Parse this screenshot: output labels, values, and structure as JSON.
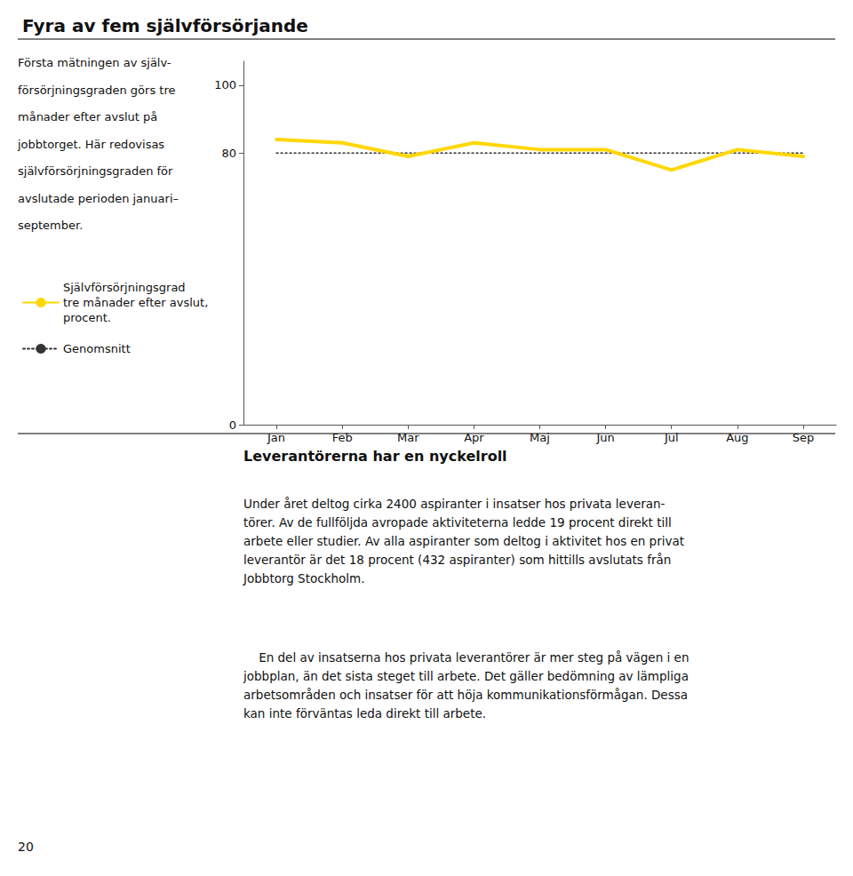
{
  "chart_data": {
    "type": "line",
    "title": "Fyra av fem självförsörjande",
    "categories": [
      "Jan",
      "Feb",
      "Mar",
      "Apr",
      "Maj",
      "Jun",
      "Jul",
      "Aug",
      "Sep"
    ],
    "series": [
      {
        "name": "Självförsörjningsgrad\ntre månader efter avslut,\nprocent.",
        "color": "#FFD700",
        "line_style": "solid",
        "values": [
          84,
          83,
          79,
          83,
          81,
          81,
          75,
          81,
          79
        ]
      },
      {
        "name": "Genomsnitt",
        "color": "#333333",
        "line_style": "dotted",
        "values": [
          80,
          80,
          80,
          80,
          80,
          80,
          80,
          80,
          80
        ]
      }
    ],
    "ylim": [
      0,
      107
    ],
    "yticks": [
      0,
      80,
      100
    ],
    "grid": false,
    "legend": "left",
    "annotations": [
      "Första mätningen av själv-",
      "försörjningsgraden görs tre",
      "månader efter avslut på",
      "jobbtorget. Här redovisas",
      "självförsörjningsgraden för",
      "avslutade perioden januari–",
      "september.",
      "Leverantörerna har en nyckelroll",
      "Under året deltog cirka 2400 aspiranter i insatser hos privata leveran-\ntörer. Av de fullföljda avropade aktiviteterna ledde 19 procent direkt till\narbete eller studier. Av alla aspiranter som deltog i aktivitet hos en privat\nleverantör är det 18 procent (432 aspiranter) som hittills avslutats från\nJobbtorg Stockholm.",
      "    En del av insatserna hos privata leverantörer är mer steg på vägen i en\njobbplan, än det sista steget till arbete. Det gäller bedömning av lämpliga\narbetsområden och insatser för att höja kommunikationsförmågan. Dessa\nkan inte förväntas leda direkt till arbete.",
      "20"
    ]
  }
}
